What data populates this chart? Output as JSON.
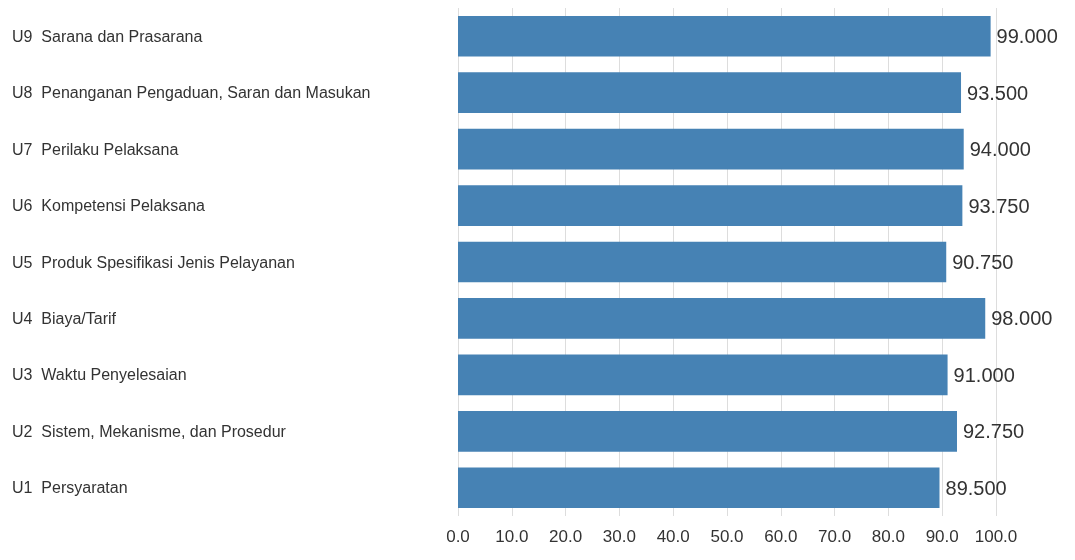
{
  "chart_data": {
    "type": "bar",
    "orientation": "horizontal",
    "categories": [
      "U9  Sarana dan Prasarana",
      "U8  Penanganan Pengaduan, Saran dan Masukan",
      "U7  Perilaku Pelaksana",
      "U6  Kompetensi Pelaksana",
      "U5  Produk Spesifikasi Jenis Pelayanan",
      "U4  Biaya/Tarif",
      "U3  Waktu Penyelesaian",
      "U2  Sistem, Mekanisme, dan Prosedur",
      "U1  Persyaratan"
    ],
    "values": [
      99,
      93.5,
      94,
      93.75,
      90.75,
      98,
      91,
      92.75,
      89.5
    ],
    "value_labels": [
      "99.000",
      "93.500",
      "94.000",
      "93.750",
      "90.750",
      "98.000",
      "91.000",
      "92.750",
      "89.500"
    ],
    "color": "#4682b4",
    "xlim": [
      0,
      100
    ],
    "xticks": [
      {
        "value": 0,
        "label": "0.0"
      },
      {
        "value": 10,
        "label": "10.0"
      },
      {
        "value": 20,
        "label": "20.0"
      },
      {
        "value": 30,
        "label": "30.0"
      },
      {
        "value": 40,
        "label": "40.0"
      },
      {
        "value": 50,
        "label": "50.0"
      },
      {
        "value": 60,
        "label": "60.0"
      },
      {
        "value": 70,
        "label": "70.0"
      },
      {
        "value": 80,
        "label": "80.0"
      },
      {
        "value": 90,
        "label": "90.0"
      },
      {
        "value": 100,
        "label": "100.0"
      }
    ],
    "grid": "x"
  }
}
